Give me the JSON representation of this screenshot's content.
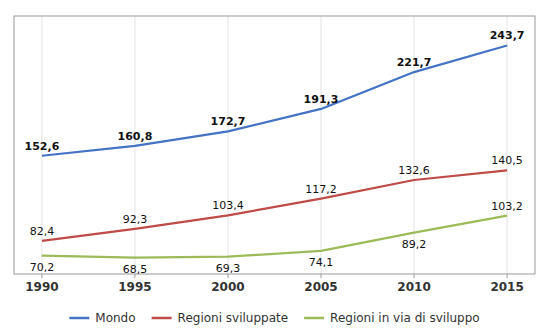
{
  "chart_data": {
    "type": "line",
    "x": [
      1990,
      1995,
      2000,
      2005,
      2010,
      2015
    ],
    "xlim": [
      1988.5,
      2016.5
    ],
    "xticks": [
      1990,
      1995,
      2000,
      2005,
      2010,
      2015
    ],
    "ylim": [
      55,
      268
    ],
    "tick_labels": "x",
    "grid": true,
    "legend": "bottom",
    "data_labels": true,
    "series": [
      {
        "name": "Mondo",
        "color": "#4472C4",
        "values": [
          152.6,
          160.8,
          172.7,
          191.3,
          221.7,
          243.7
        ],
        "value_labels": [
          "152,6",
          "160,8",
          "172,7",
          "191,3",
          "221,7",
          "243,7"
        ]
      },
      {
        "name": "Regioni sviluppate",
        "color": "#BE4B48",
        "values": [
          82.4,
          92.3,
          103.4,
          117.2,
          132.6,
          140.5
        ],
        "value_labels": [
          "82,4",
          "92,3",
          "103,4",
          "117,2",
          "132,6",
          "140,5"
        ]
      },
      {
        "name": "Regioni in via di sviluppo",
        "color": "#9BBB59",
        "values": [
          70.2,
          68.5,
          69.3,
          74.1,
          89.2,
          103.2
        ],
        "value_labels": [
          "70,2",
          "68,5",
          "69,3",
          "74,1",
          "89,2",
          "103,2"
        ]
      }
    ]
  }
}
